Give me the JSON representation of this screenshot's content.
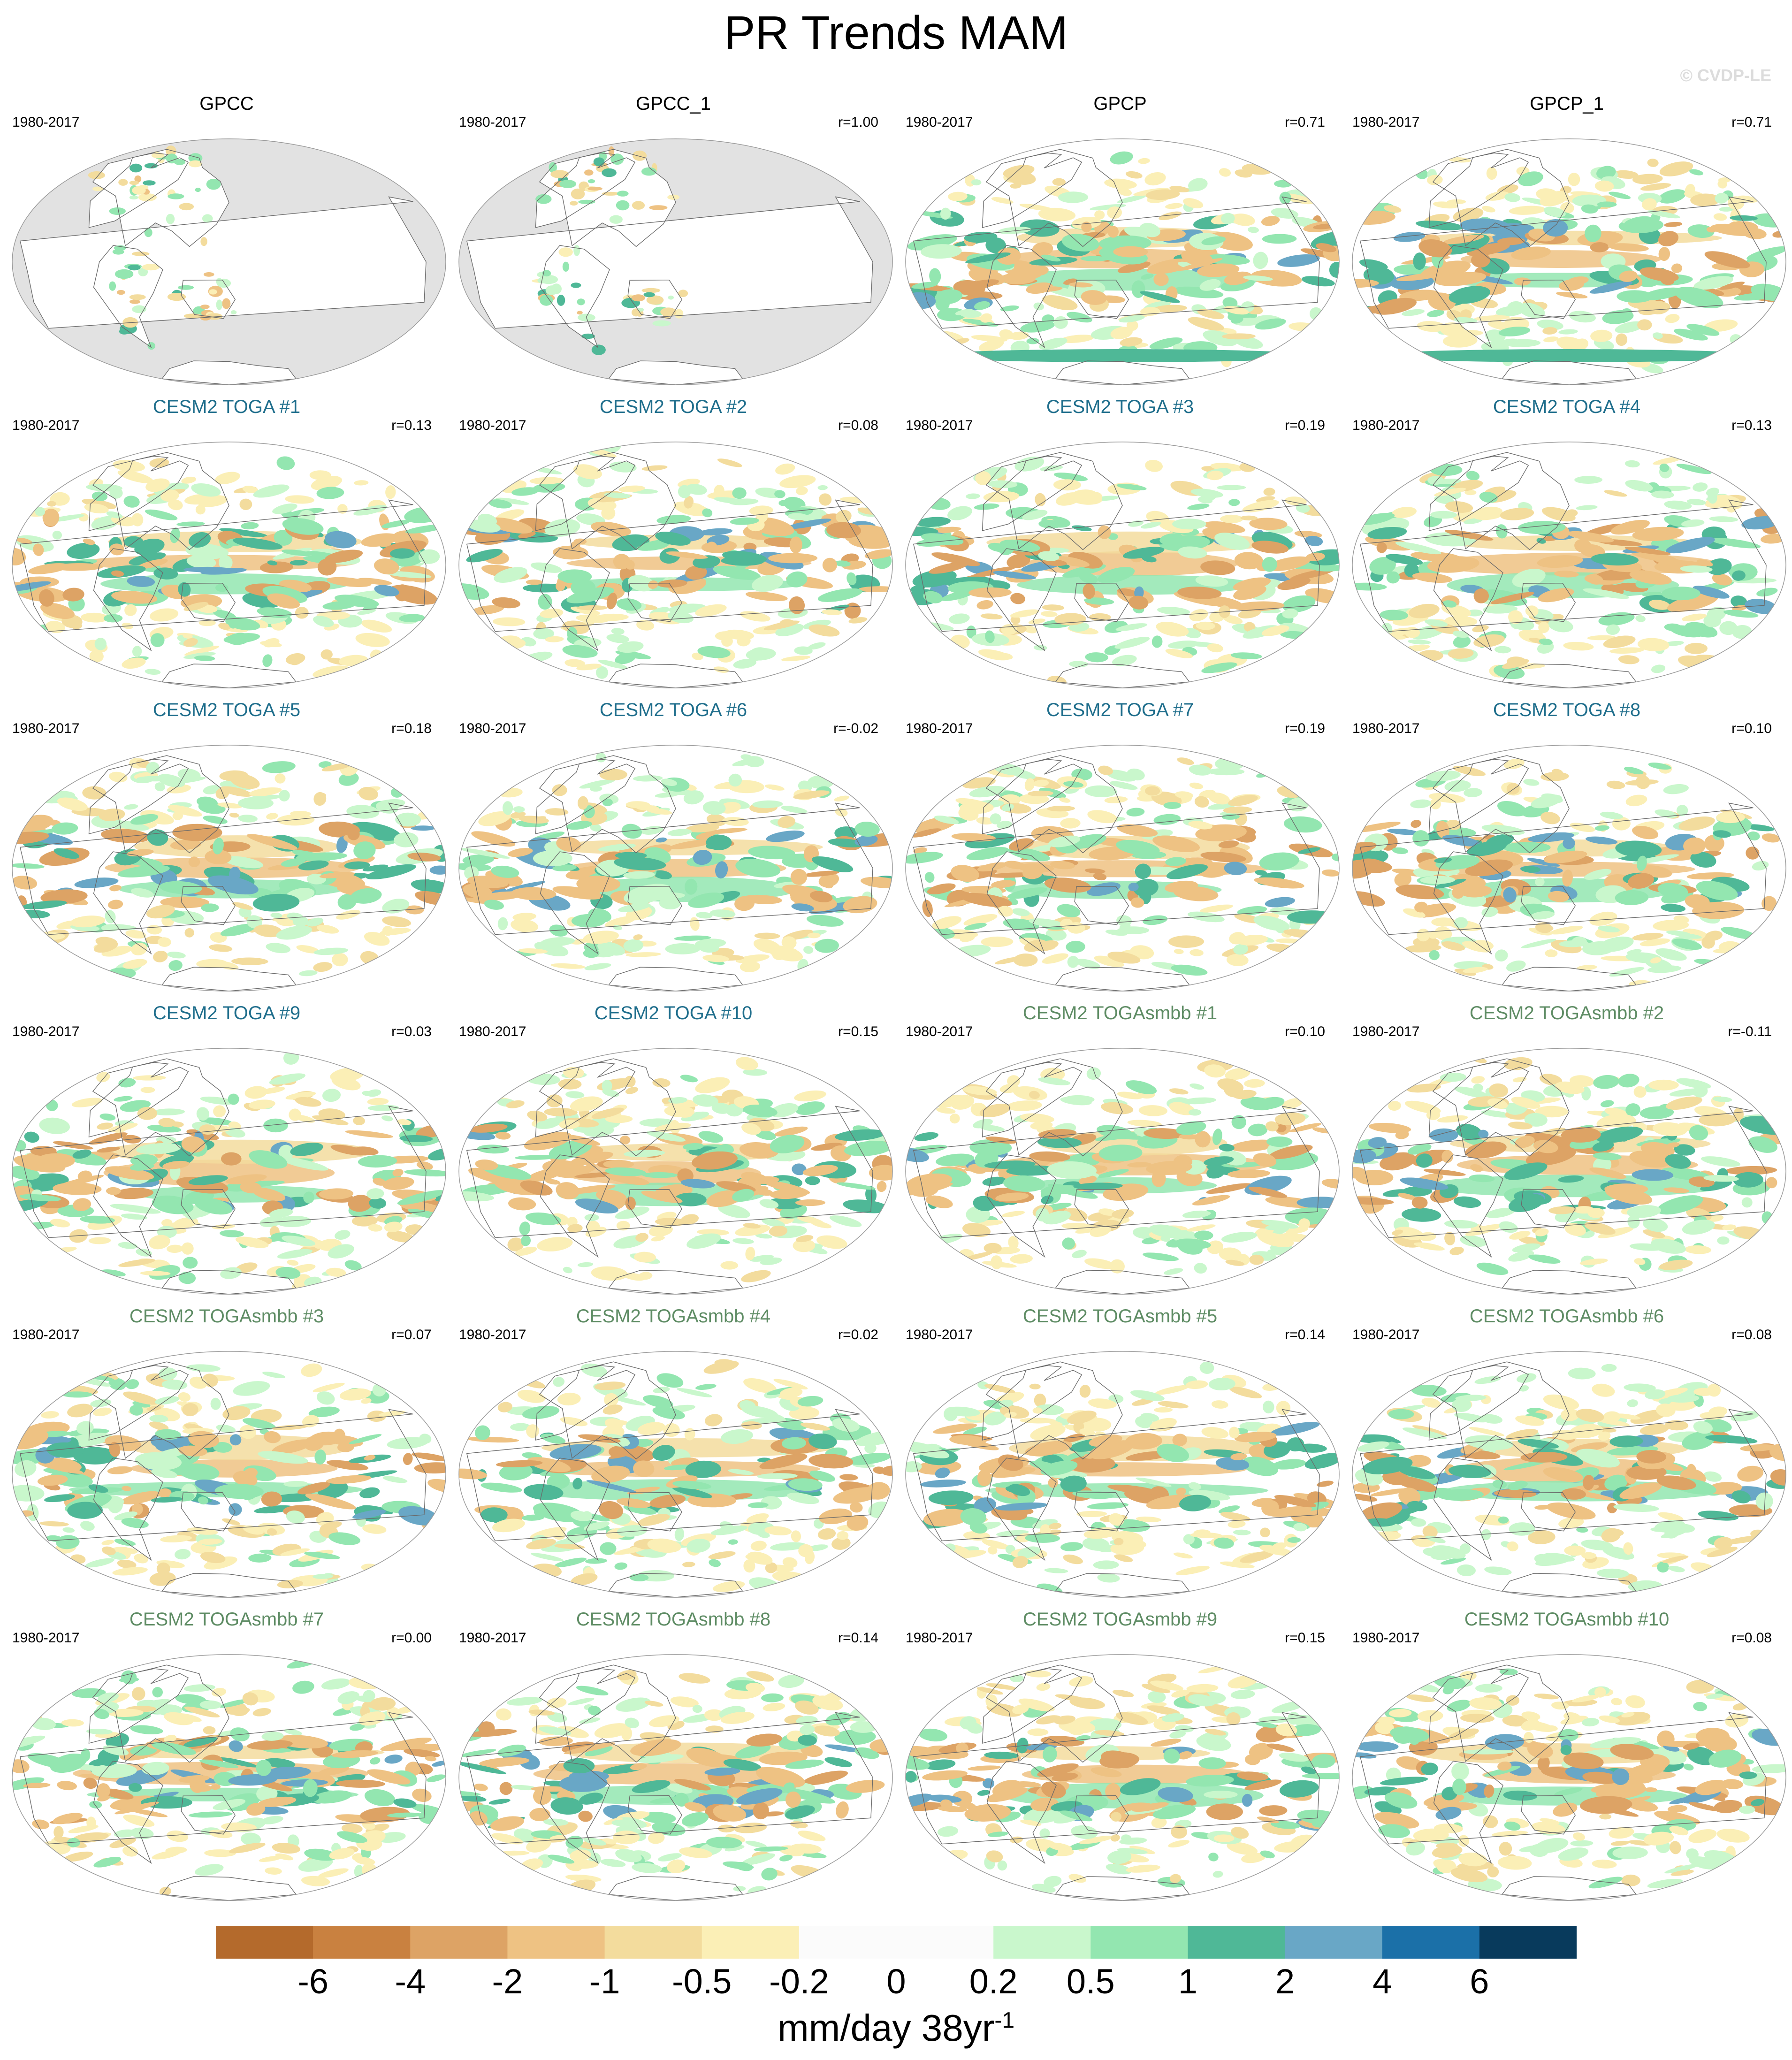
{
  "title": "PR Trends MAM",
  "watermark": "© CVDP-LE",
  "period": "1980-2017",
  "units": {
    "base": "mm/day 38yr",
    "exponent": "-1"
  },
  "colorbar": {
    "colors": [
      "#b46a2c",
      "#c98140",
      "#dda365",
      "#eec283",
      "#f3dc9d",
      "#fbefb6",
      "#fbfbfb",
      "#fbfbfb",
      "#c9f7cc",
      "#93e6b0",
      "#4fb897",
      "#69a7c6",
      "#1b70a8",
      "#083a5c"
    ],
    "tick_labels": [
      "-6",
      "-4",
      "-2",
      "-1",
      "-0.5",
      "-0.2",
      "0",
      "0.2",
      "0.5",
      "1",
      "2",
      "4",
      "6"
    ]
  },
  "panels": [
    {
      "title": "GPCC",
      "group": "obs",
      "r": "",
      "land_only": true
    },
    {
      "title": "GPCC_1",
      "group": "obs",
      "r": "r=1.00",
      "land_only": true
    },
    {
      "title": "GPCP",
      "group": "obs",
      "r": "r=0.71",
      "land_only": false
    },
    {
      "title": "GPCP_1",
      "group": "obs",
      "r": "r=0.71",
      "land_only": false
    },
    {
      "title": "CESM2 TOGA #1",
      "group": "toga",
      "r": "r=0.13",
      "land_only": false
    },
    {
      "title": "CESM2 TOGA #2",
      "group": "toga",
      "r": "r=0.08",
      "land_only": false
    },
    {
      "title": "CESM2 TOGA #3",
      "group": "toga",
      "r": "r=0.19",
      "land_only": false
    },
    {
      "title": "CESM2 TOGA #4",
      "group": "toga",
      "r": "r=0.13",
      "land_only": false
    },
    {
      "title": "CESM2 TOGA #5",
      "group": "toga",
      "r": "r=0.18",
      "land_only": false
    },
    {
      "title": "CESM2 TOGA #6",
      "group": "toga",
      "r": "r=-0.02",
      "land_only": false
    },
    {
      "title": "CESM2 TOGA #7",
      "group": "toga",
      "r": "r=0.19",
      "land_only": false
    },
    {
      "title": "CESM2 TOGA #8",
      "group": "toga",
      "r": "r=0.10",
      "land_only": false
    },
    {
      "title": "CESM2 TOGA #9",
      "group": "toga",
      "r": "r=0.03",
      "land_only": false
    },
    {
      "title": "CESM2 TOGA #10",
      "group": "toga",
      "r": "r=0.15",
      "land_only": false
    },
    {
      "title": "CESM2 TOGAsmbb #1",
      "group": "smbb",
      "r": "r=0.10",
      "land_only": false
    },
    {
      "title": "CESM2 TOGAsmbb #2",
      "group": "smbb",
      "r": "r=-0.11",
      "land_only": false
    },
    {
      "title": "CESM2 TOGAsmbb #3",
      "group": "smbb",
      "r": "r=0.07",
      "land_only": false
    },
    {
      "title": "CESM2 TOGAsmbb #4",
      "group": "smbb",
      "r": "r=0.02",
      "land_only": false
    },
    {
      "title": "CESM2 TOGAsmbb #5",
      "group": "smbb",
      "r": "r=0.14",
      "land_only": false
    },
    {
      "title": "CESM2 TOGAsmbb #6",
      "group": "smbb",
      "r": "r=0.08",
      "land_only": false
    },
    {
      "title": "CESM2 TOGAsmbb #7",
      "group": "smbb",
      "r": "r=0.00",
      "land_only": false
    },
    {
      "title": "CESM2 TOGAsmbb #8",
      "group": "smbb",
      "r": "r=0.14",
      "land_only": false
    },
    {
      "title": "CESM2 TOGAsmbb #9",
      "group": "smbb",
      "r": "r=0.15",
      "land_only": false
    },
    {
      "title": "CESM2 TOGAsmbb #10",
      "group": "smbb",
      "r": "r=0.08",
      "land_only": false
    }
  ]
}
